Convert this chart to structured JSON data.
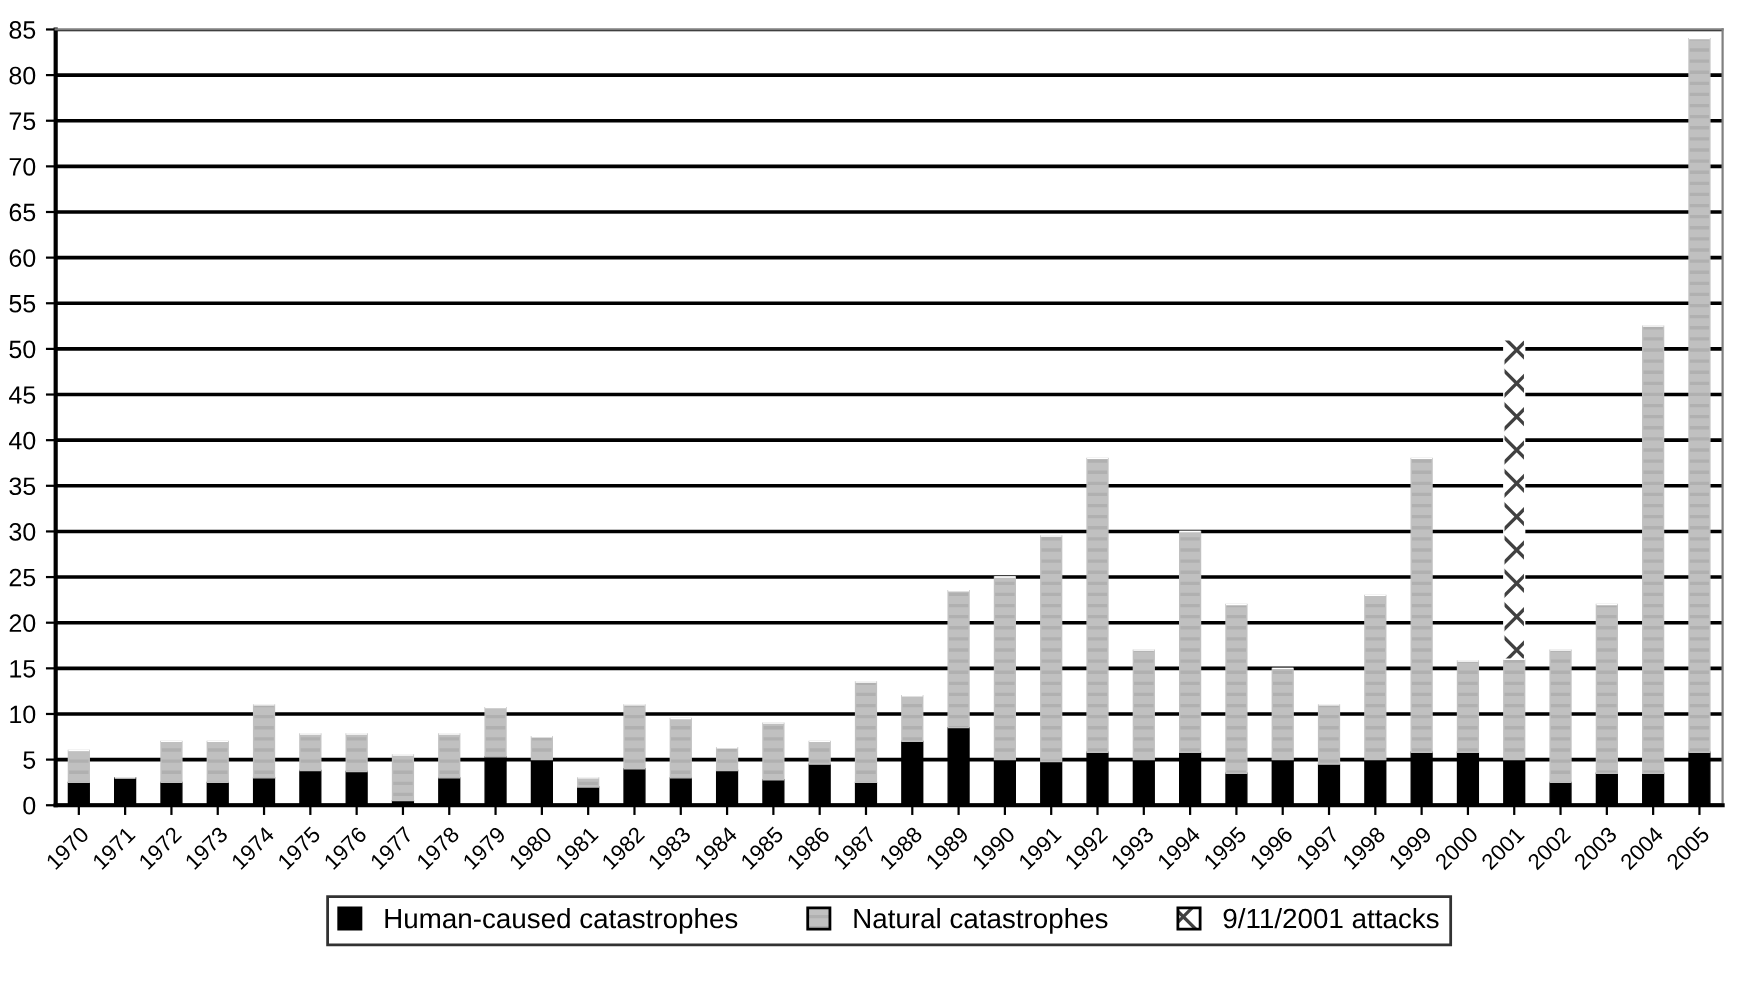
{
  "chart_data": {
    "type": "bar",
    "stacked": true,
    "categories": [
      "1970",
      "1971",
      "1972",
      "1973",
      "1974",
      "1975",
      "1976",
      "1977",
      "1978",
      "1979",
      "1980",
      "1981",
      "1982",
      "1983",
      "1984",
      "1985",
      "1986",
      "1987",
      "1988",
      "1989",
      "1990",
      "1991",
      "1992",
      "1993",
      "1994",
      "1995",
      "1996",
      "1997",
      "1998",
      "1999",
      "2000",
      "2001",
      "2002",
      "2003",
      "2004",
      "2005"
    ],
    "series": [
      {
        "name": "Human-caused catastrophes",
        "color": "#000000",
        "values": [
          2.5,
          3,
          2.5,
          2.5,
          3,
          3.8,
          3.7,
          0.5,
          3,
          5.3,
          5,
          2,
          4,
          3,
          3.8,
          2.8,
          4.5,
          2.5,
          7,
          8.5,
          5,
          4.8,
          5.8,
          5,
          5.8,
          3.5,
          5,
          4.5,
          5,
          5.8,
          5.8,
          5,
          2.5,
          3.5,
          3.5,
          5.8
        ]
      },
      {
        "name": "Natural catastrophes",
        "color": "#c0c0c0",
        "values": [
          3.5,
          0,
          4.5,
          4.5,
          8,
          4,
          4.1,
          5,
          4.8,
          5.4,
          2.5,
          1,
          7,
          6.5,
          2.5,
          6.2,
          2.5,
          11,
          5,
          15,
          20,
          24.7,
          32.2,
          12,
          24.2,
          18.5,
          10,
          6.5,
          18,
          32.2,
          10,
          11,
          14.5,
          18.5,
          49,
          78.2
        ]
      },
      {
        "name": "9/11/2001 attacks",
        "color": "#ffffff",
        "values": [
          0,
          0,
          0,
          0,
          0,
          0,
          0,
          0,
          0,
          0,
          0,
          0,
          0,
          0,
          0,
          0,
          0,
          0,
          0,
          0,
          0,
          0,
          0,
          0,
          0,
          0,
          0,
          0,
          0,
          0,
          0,
          35,
          0,
          0,
          0,
          0
        ]
      }
    ],
    "ylim": [
      0,
      85
    ],
    "yticks": [
      0,
      5,
      10,
      15,
      20,
      25,
      30,
      35,
      40,
      45,
      50,
      55,
      60,
      65,
      70,
      75,
      80,
      85
    ],
    "grid": "y",
    "legend": "bottom"
  }
}
